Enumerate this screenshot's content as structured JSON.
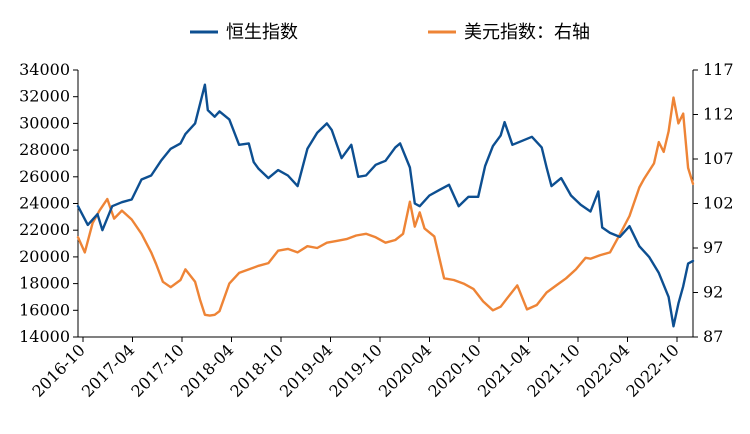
{
  "chart_data": {
    "type": "line",
    "title": "",
    "xlabel": "",
    "ylabel": "",
    "y2label": "",
    "legend_position": "top",
    "grid": false,
    "colors": {
      "hsi": "#0d4f91",
      "dxy": "#ee8436",
      "axis": "#000000"
    },
    "x_tick_labels": [
      "2016-10",
      "2017-04",
      "2017-10",
      "2018-04",
      "2018-10",
      "2019-04",
      "2019-10",
      "2020-04",
      "2020-10",
      "2021-04",
      "2021-10",
      "2022-04",
      "2022-10"
    ],
    "y_ticks": [
      14000,
      16000,
      18000,
      20000,
      22000,
      24000,
      26000,
      28000,
      30000,
      32000,
      34000
    ],
    "y2_ticks": [
      87,
      92,
      97,
      102,
      107,
      112,
      117
    ],
    "ylim": [
      14000,
      34000
    ],
    "y2lim": [
      87,
      117
    ],
    "series": [
      {
        "name": "恒生指数",
        "axis": "left",
        "x": [
          2016.75,
          2016.85,
          2016.95,
          2017.0,
          2017.1,
          2017.2,
          2017.3,
          2017.4,
          2017.5,
          2017.6,
          2017.7,
          2017.8,
          2017.85,
          2017.95,
          2018.05,
          2018.08,
          2018.15,
          2018.2,
          2018.3,
          2018.4,
          2018.5,
          2018.55,
          2018.6,
          2018.7,
          2018.8,
          2018.9,
          2019.0,
          2019.1,
          2019.2,
          2019.3,
          2019.35,
          2019.45,
          2019.55,
          2019.62,
          2019.7,
          2019.8,
          2019.9,
          2020.0,
          2020.05,
          2020.15,
          2020.2,
          2020.25,
          2020.35,
          2020.45,
          2020.55,
          2020.65,
          2020.75,
          2020.85,
          2020.92,
          2021.0,
          2021.08,
          2021.12,
          2021.2,
          2021.3,
          2021.4,
          2021.5,
          2021.55,
          2021.6,
          2021.7,
          2021.8,
          2021.9,
          2022.0,
          2022.08,
          2022.12,
          2022.2,
          2022.3,
          2022.4,
          2022.5,
          2022.6,
          2022.7,
          2022.8,
          2022.85,
          2022.9,
          2022.95,
          2023.0,
          2023.05
        ],
        "values": [
          23800,
          22400,
          23200,
          22000,
          23800,
          24100,
          24300,
          25800,
          26100,
          27200,
          28100,
          28500,
          29200,
          30000,
          32900,
          31000,
          30500,
          30900,
          30300,
          28400,
          28500,
          27100,
          26600,
          25900,
          26500,
          26100,
          25300,
          28100,
          29300,
          30000,
          29500,
          27400,
          28400,
          26000,
          26100,
          26900,
          27200,
          28200,
          28500,
          26700,
          24000,
          23800,
          24600,
          25000,
          25400,
          23800,
          24500,
          24500,
          26800,
          28300,
          29100,
          30100,
          28400,
          28700,
          29000,
          28200,
          26700,
          25300,
          25900,
          24600,
          23900,
          23400,
          24900,
          22200,
          21800,
          21500,
          22300,
          20800,
          20000,
          18800,
          17000,
          14800,
          16500,
          17800,
          19500,
          19700
        ]
      },
      {
        "name": "美元指数：右轴",
        "axis": "right",
        "x": [
          2016.75,
          2016.82,
          2016.9,
          2016.97,
          2017.05,
          2017.12,
          2017.2,
          2017.3,
          2017.4,
          2017.5,
          2017.55,
          2017.62,
          2017.7,
          2017.8,
          2017.85,
          2017.95,
          2018.0,
          2018.05,
          2018.1,
          2018.15,
          2018.2,
          2018.3,
          2018.4,
          2018.5,
          2018.6,
          2018.7,
          2018.8,
          2018.9,
          2019.0,
          2019.1,
          2019.2,
          2019.3,
          2019.4,
          2019.5,
          2019.6,
          2019.7,
          2019.8,
          2019.9,
          2020.0,
          2020.08,
          2020.15,
          2020.2,
          2020.25,
          2020.3,
          2020.4,
          2020.5,
          2020.6,
          2020.7,
          2020.8,
          2020.9,
          2021.0,
          2021.08,
          2021.15,
          2021.25,
          2021.35,
          2021.45,
          2021.55,
          2021.65,
          2021.75,
          2021.85,
          2021.95,
          2022.0,
          2022.1,
          2022.2,
          2022.3,
          2022.4,
          2022.5,
          2022.55,
          2022.65,
          2022.7,
          2022.75,
          2022.8,
          2022.85,
          2022.9,
          2022.95,
          2023.0,
          2023.05
        ],
        "values": [
          98.2,
          96.5,
          99.8,
          101.2,
          102.5,
          100.3,
          101.2,
          100.2,
          98.6,
          96.5,
          95.2,
          93.2,
          92.6,
          93.4,
          94.6,
          93.2,
          91.2,
          89.5,
          89.4,
          89.5,
          89.9,
          93.0,
          94.2,
          94.6,
          95.0,
          95.3,
          96.7,
          96.9,
          96.5,
          97.2,
          97.0,
          97.6,
          97.8,
          98.0,
          98.4,
          98.6,
          98.2,
          97.6,
          97.9,
          98.6,
          102.2,
          99.4,
          101.0,
          99.2,
          98.3,
          93.6,
          93.4,
          93.0,
          92.4,
          91.0,
          90.0,
          90.4,
          91.4,
          92.8,
          90.1,
          90.6,
          92.0,
          92.8,
          93.6,
          94.6,
          95.9,
          95.8,
          96.2,
          96.5,
          98.5,
          100.6,
          103.8,
          104.8,
          106.5,
          108.9,
          107.8,
          110.1,
          113.9,
          111.0,
          112.1,
          106.0,
          104.2
        ]
      }
    ]
  },
  "legend": {
    "items": [
      {
        "label": "恒生指数"
      },
      {
        "label": "美元指数：右轴"
      }
    ]
  }
}
